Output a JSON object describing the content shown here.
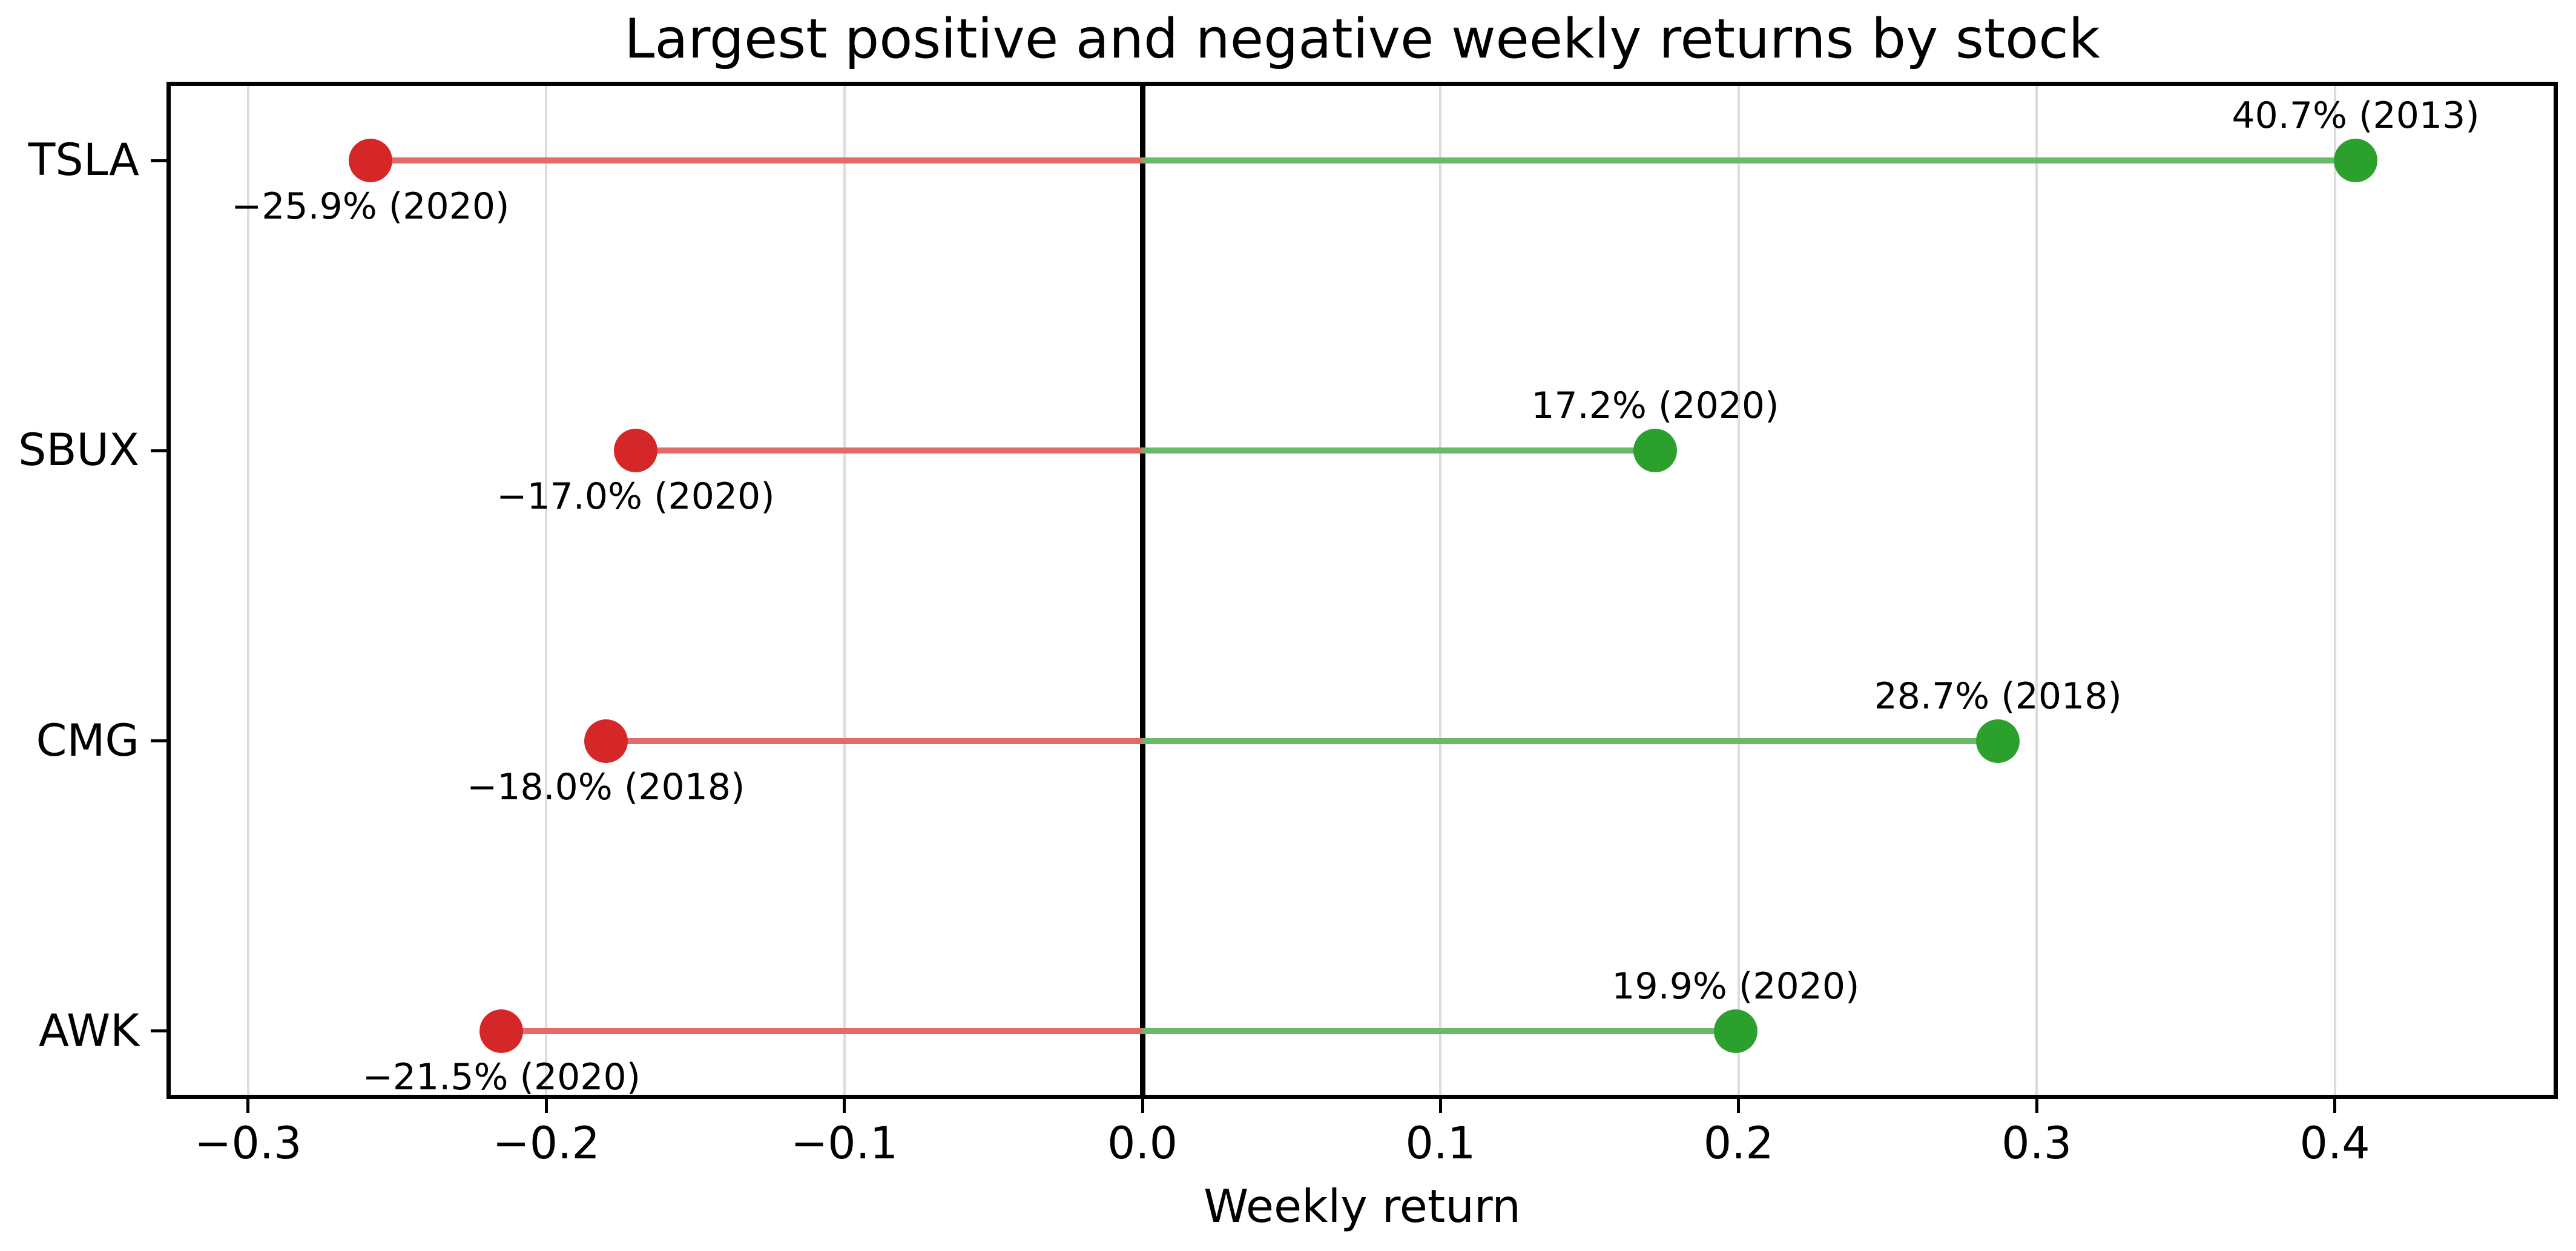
{
  "chart_data": {
    "type": "scatter",
    "subtype": "horizontal-lollipop-dumbbell",
    "title": "Largest positive and negative weekly returns by stock",
    "xlabel": "Weekly return",
    "ylabel": "",
    "xlim": [
      -0.325,
      0.475
    ],
    "x_ticks": [
      -0.3,
      -0.2,
      -0.1,
      0.0,
      0.1,
      0.2,
      0.3,
      0.4
    ],
    "x_tick_labels": [
      "−0.3",
      "−0.2",
      "−0.1",
      "0.0",
      "0.1",
      "0.2",
      "0.3",
      "0.4"
    ],
    "grid": "vertical light gray gridlines at each x tick",
    "zero_line": "solid black vertical line at x = 0",
    "legend": "none",
    "categories": [
      "TSLA",
      "SBUX",
      "CMG",
      "AWK"
    ],
    "rows": [
      {
        "stock": "TSLA",
        "negative": {
          "value": -0.259,
          "year": "2020",
          "label": "−25.9% (2020)"
        },
        "positive": {
          "value": 0.407,
          "year": "2013",
          "label": "40.7% (2013)"
        }
      },
      {
        "stock": "SBUX",
        "negative": {
          "value": -0.17,
          "year": "2020",
          "label": "−17.0% (2020)"
        },
        "positive": {
          "value": 0.172,
          "year": "2020",
          "label": "17.2% (2020)"
        }
      },
      {
        "stock": "CMG",
        "negative": {
          "value": -0.18,
          "year": "2018",
          "label": "−18.0% (2018)"
        },
        "positive": {
          "value": 0.287,
          "year": "2018",
          "label": "28.7% (2018)"
        }
      },
      {
        "stock": "AWK",
        "negative": {
          "value": -0.215,
          "year": "2020",
          "label": "−21.5% (2020)"
        },
        "positive": {
          "value": 0.199,
          "year": "2020",
          "label": "19.9% (2020)"
        }
      }
    ],
    "colors": {
      "negative_dot": "#d62728",
      "positive_dot": "#2ca02c",
      "negative_stem": "#e46a6a",
      "positive_stem": "#69b969",
      "gridline": "#dcdcdc",
      "axis": "#000000",
      "text": "#000000",
      "background": "#ffffff"
    }
  }
}
